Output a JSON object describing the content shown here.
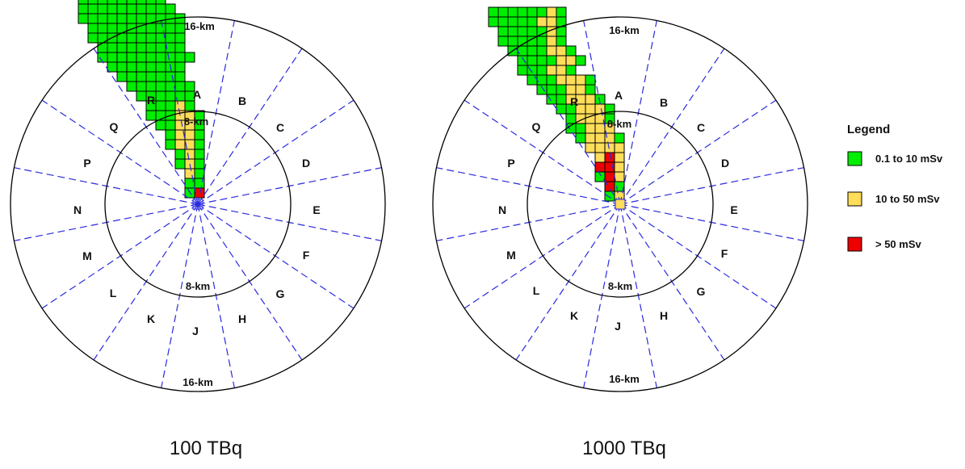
{
  "panels": [
    {
      "caption": "100 TBq",
      "inner_ring_label_top": "8-km",
      "inner_ring_label_bottom": "8-km",
      "outer_ring_label_top": "16-km",
      "outer_ring_label_bottom": "16-km",
      "plume_max_level": "> 50 mSv"
    },
    {
      "caption": "1000 TBq",
      "inner_ring_label_top": "8-km",
      "inner_ring_label_bottom": "8-km",
      "outer_ring_label_top": "16-km",
      "outer_ring_label_bottom": "16-km",
      "plume_max_level": "> 50 mSv"
    }
  ],
  "sectors": [
    "A",
    "B",
    "C",
    "D",
    "E",
    "F",
    "G",
    "H",
    "J",
    "K",
    "L",
    "M",
    "N",
    "P",
    "Q",
    "R"
  ],
  "legend": {
    "title": "Legend",
    "items": [
      {
        "label": "0.1 to 10 mSv",
        "color": "#00ee00"
      },
      {
        "label": "10 to 50 mSv",
        "color": "#fedd5a"
      },
      {
        "label": "> 50 mSv",
        "color": "#ee0000"
      }
    ]
  },
  "colors": {
    "sector_lines": "#2a2adf",
    "ring_lines": "#000000",
    "grid_lines": "#000000"
  }
}
